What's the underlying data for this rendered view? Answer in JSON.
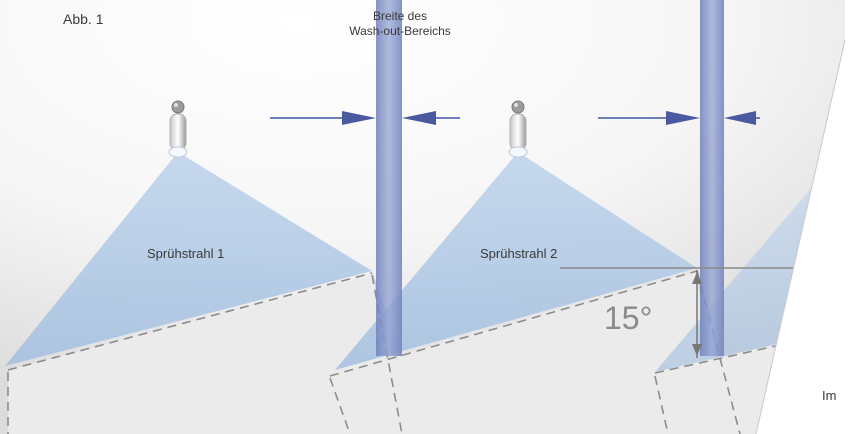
{
  "figure_label": "Abb. 1",
  "width_label_line1": "Breite des",
  "width_label_line2": "Wash-out-Bereichs",
  "spray_labels": [
    "Sprühstrahl 1",
    "Sprühstrahl 2"
  ],
  "angle_label": "15°",
  "cut_text": "Im",
  "colors": {
    "spray": "#a9c4e2",
    "washout_band": "#7f8fc4",
    "arrow": "#4b5aa0",
    "surface": "#ececec",
    "dashed": "#8c8c8c"
  }
}
